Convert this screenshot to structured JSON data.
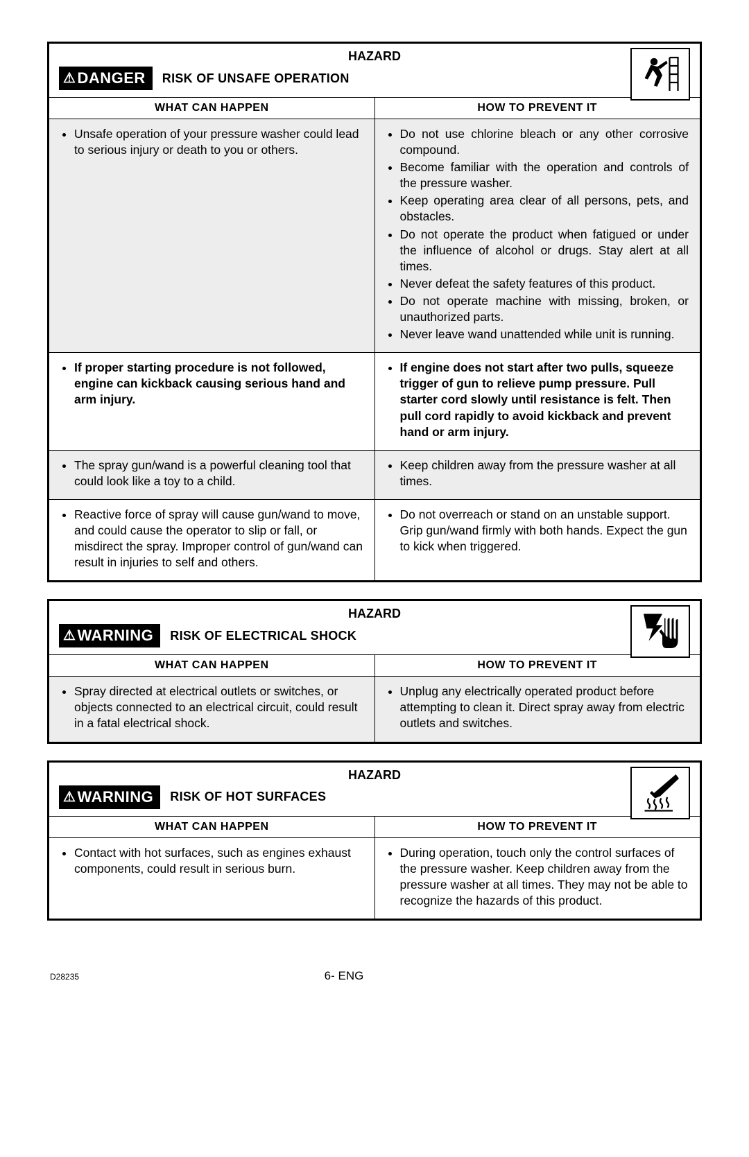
{
  "tables": [
    {
      "hazard_label": "HAZARD",
      "signal_word": "DANGER",
      "risk_title": "RISK OF UNSAFE OPERATION",
      "icon": "falling-person-icon",
      "col1_header": "WHAT CAN HAPPEN",
      "col2_header": "HOW TO PREVENT IT",
      "rows": [
        {
          "shaded": true,
          "left_bold": false,
          "right_bold": false,
          "right_justify": true,
          "left": [
            "Unsafe operation of your pressure washer could lead to serious injury or death to you or others."
          ],
          "right": [
            "Do not use chlorine bleach or any other corrosive compound.",
            "Become familiar with the operation and controls of the pressure washer.",
            "Keep operating area clear of all persons, pets, and obstacles.",
            "Do not operate the product when fatigued or under the influence of alcohol or drugs. Stay alert at all times.",
            "Never defeat the safety features of this product.",
            "Do not operate machine with missing, broken, or unauthorized parts.",
            "Never leave wand unattended while unit is running."
          ]
        },
        {
          "shaded": false,
          "left_bold": true,
          "right_bold": true,
          "right_justify": false,
          "left": [
            "If proper starting procedure is not followed, engine can kickback causing serious hand and arm injury."
          ],
          "right": [
            "If engine does not start after two pulls, squeeze trigger of gun to relieve pump pressure. Pull starter cord slowly until resistance is felt. Then pull cord rapidly to avoid kickback and prevent hand or arm injury."
          ]
        },
        {
          "shaded": true,
          "left_bold": false,
          "right_bold": false,
          "right_justify": false,
          "left": [
            "The spray gun/wand is a powerful cleaning tool that could look like a toy to a child."
          ],
          "right": [
            "Keep children away from the pressure washer at all times."
          ]
        },
        {
          "shaded": false,
          "left_bold": false,
          "right_bold": false,
          "right_justify": false,
          "left": [
            "Reactive force of spray will cause gun/wand to move, and could cause the operator to slip or fall, or misdirect the spray. Improper control of gun/wand can result in injuries to self and others."
          ],
          "right": [
            "Do not overreach or stand on an unstable support. Grip gun/wand firmly with both hands. Expect the gun to kick when triggered."
          ]
        }
      ]
    },
    {
      "hazard_label": "HAZARD",
      "signal_word": "WARNING",
      "risk_title": "RISK OF ELECTRICAL SHOCK",
      "icon": "shock-hand-icon",
      "col1_header": "WHAT CAN HAPPEN",
      "col2_header": "HOW TO PREVENT IT",
      "rows": [
        {
          "shaded": true,
          "left_bold": false,
          "right_bold": false,
          "right_justify": false,
          "left": [
            "Spray directed at electrical outlets or switches, or objects connected to an electrical circuit, could result in a fatal electrical shock."
          ],
          "right": [
            "Unplug any electrically operated product before attempting to clean it. Direct spray away from electric outlets and switches."
          ]
        }
      ]
    },
    {
      "hazard_label": "HAZARD",
      "signal_word": "WARNING",
      "risk_title": "RISK OF HOT SURFACES",
      "icon": "hot-surface-icon",
      "col1_header": "WHAT CAN HAPPEN",
      "col2_header": "HOW TO PREVENT IT",
      "rows": [
        {
          "shaded": false,
          "left_bold": false,
          "right_bold": false,
          "right_justify": false,
          "left": [
            "Contact with hot surfaces, such as engines exhaust components, could result in serious burn."
          ],
          "right": [
            "During operation, touch only the control surfaces of the pressure washer. Keep children away from the pressure washer at all times. They may not be able to recognize the hazards of this product."
          ]
        }
      ]
    }
  ],
  "footer": {
    "doc_code": "D28235",
    "page": "6- ENG"
  }
}
